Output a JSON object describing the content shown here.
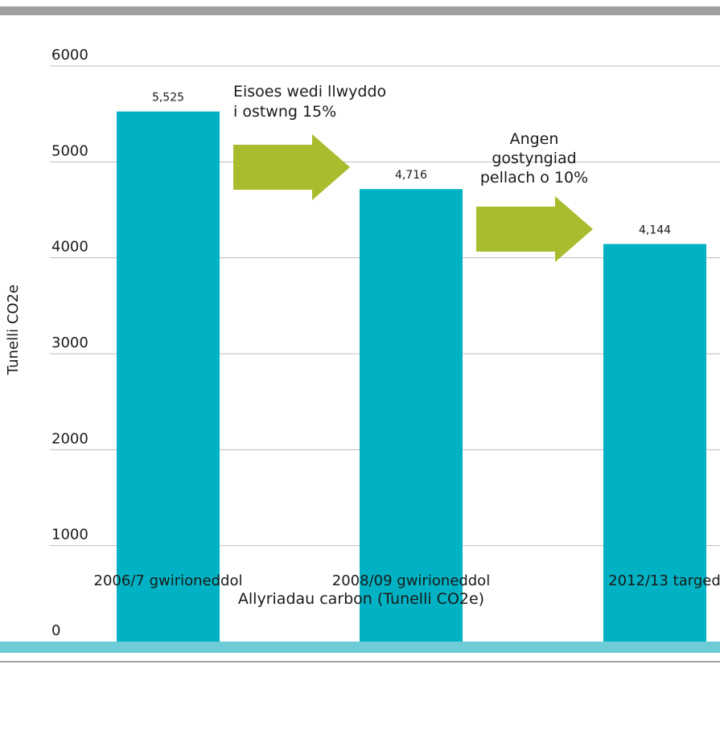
{
  "chart_data": {
    "type": "bar",
    "title": "",
    "xlabel": "Allyriadau carbon (Tunelli CO2e)",
    "ylabel": "Tunelli CO2e",
    "categories": [
      "2006/7 gwirioneddol",
      "2008/09 gwirioneddol",
      "2012/13 targed"
    ],
    "values": [
      5525,
      4716,
      4144
    ],
    "value_labels": [
      "5,525",
      "4,716",
      "4,144"
    ],
    "ylim": [
      0,
      6000
    ],
    "yticks": [
      0,
      1000,
      2000,
      3000,
      4000,
      5000,
      6000
    ],
    "grid": true,
    "legend": "none",
    "annotations": [
      {
        "lines": [
          "Eisoes wedi llwyddo",
          "i ostwng 15%"
        ],
        "from": 0,
        "to": 1
      },
      {
        "lines": [
          "Angen",
          "gostyngiad",
          "pellach o 10%"
        ],
        "from": 1,
        "to": 2
      }
    ],
    "colors": {
      "bar": "#00B2C3",
      "arrow": "#A9BC2E",
      "baseline": "#6ECBD8",
      "top_rule": "#A0A0A0",
      "bottom_rule": "#A0A0A0",
      "grid": "#BDBDBD",
      "text": "#1a1a1a"
    }
  }
}
